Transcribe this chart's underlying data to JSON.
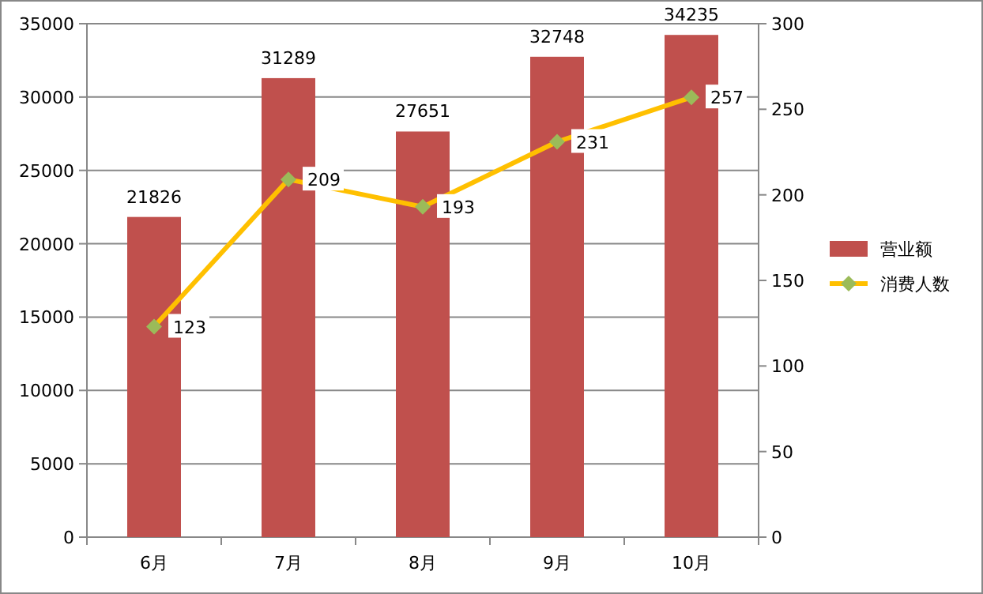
{
  "chart_data": {
    "type": "bar",
    "categories": [
      "6月",
      "7月",
      "8月",
      "9月",
      "10月"
    ],
    "series": [
      {
        "name": "营业额",
        "color": "#c0504d",
        "values": [
          21826,
          31289,
          27651,
          32748,
          34235
        ]
      },
      {
        "name": "消费人数",
        "type": "line",
        "axis": "y2",
        "color": "#ffc000",
        "values": [
          123,
          209,
          193,
          231,
          257
        ]
      }
    ],
    "ylim": [
      0,
      35000
    ],
    "yticks": [
      0,
      5000,
      10000,
      15000,
      20000,
      25000,
      30000,
      35000
    ],
    "y2lim": [
      0,
      300
    ],
    "y2ticks": [
      0,
      50,
      100,
      150,
      200,
      250,
      300
    ],
    "grid": "y",
    "legend": "right",
    "marker": "diamond",
    "data_labels": true
  }
}
